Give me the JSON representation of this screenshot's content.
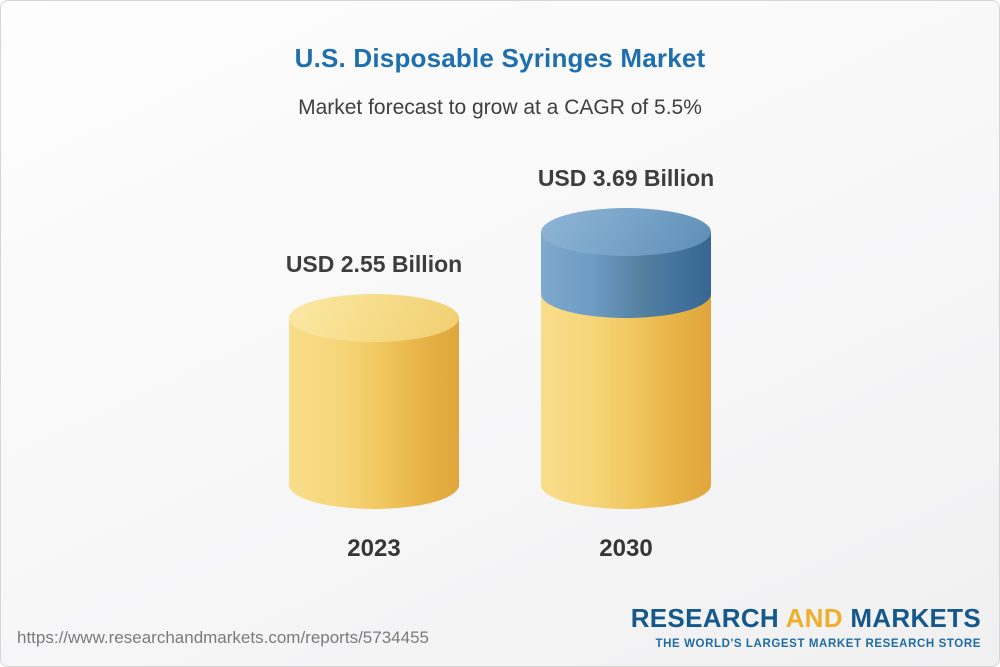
{
  "header": {
    "title": "U.S. Disposable Syringes Market",
    "subtitle": "Market forecast to grow at a CAGR of 5.5%"
  },
  "chart_data": {
    "type": "bar",
    "title": "U.S. Disposable Syringes Market",
    "subtitle": "Market forecast to grow at a CAGR of 5.5%",
    "categories": [
      "2023",
      "2030"
    ],
    "values": [
      2.55,
      3.69
    ],
    "value_labels": [
      "USD 2.55 Billion",
      "USD 3.69 Billion"
    ],
    "unit": "USD Billion",
    "cagr": "5.5%",
    "style": "3d-cylinder",
    "colors": {
      "base_segment": "#f0c75e",
      "growth_segment": "#4d7ea8",
      "title": "#1e6fad",
      "label_text": "#3d3d3d"
    },
    "legend": "off",
    "grid": "off",
    "notes": "2030 cylinder shows base value in yellow with growth portion (3.69 - 2.55) stacked in blue on top"
  },
  "footer": {
    "url": "https://www.researchandmarkets.com/reports/5734455",
    "logo": {
      "word1": "RESEARCH",
      "word2": "AND",
      "word3": "MARKETS",
      "tagline": "THE WORLD'S LARGEST MARKET RESEARCH STORE"
    }
  }
}
